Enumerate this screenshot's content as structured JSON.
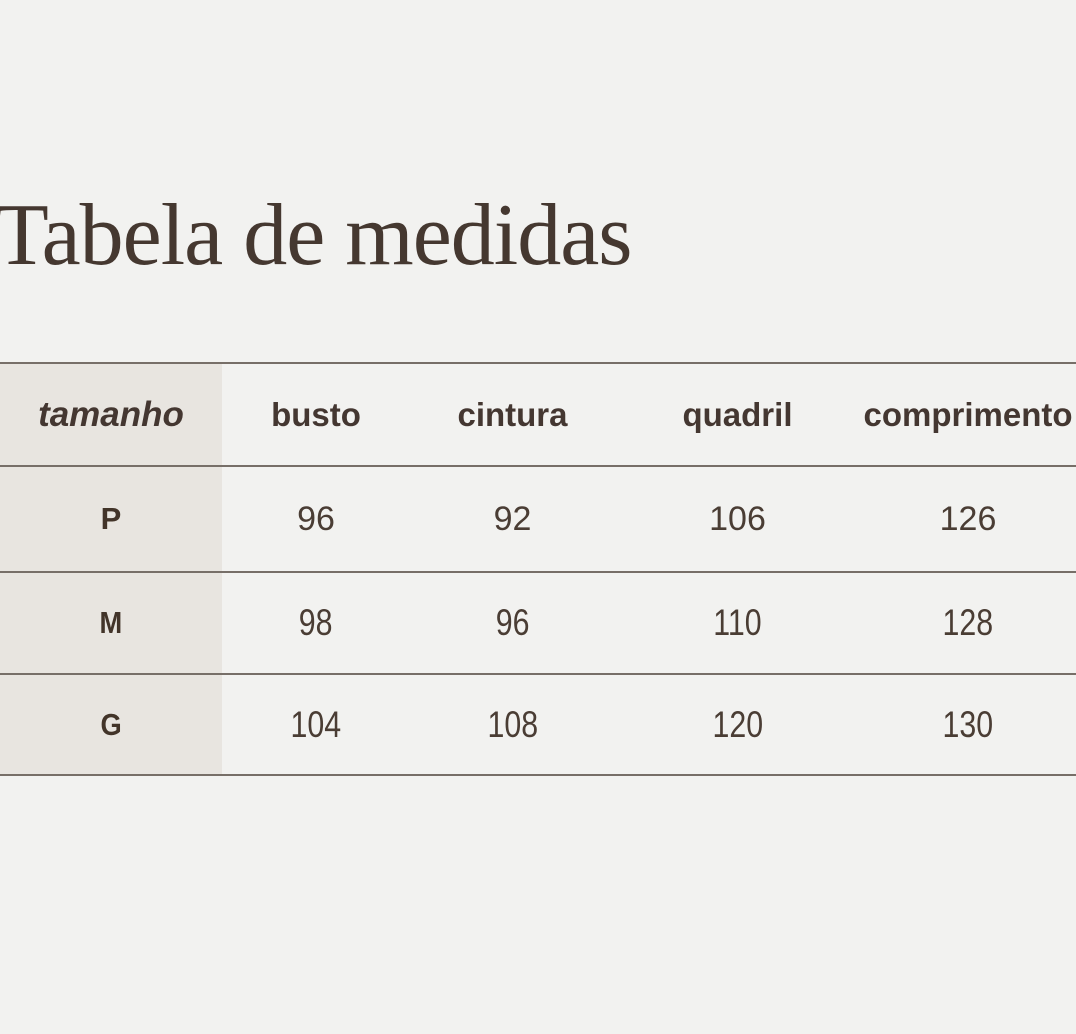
{
  "page": {
    "title": "Tabela de medidas"
  },
  "colors": {
    "background": "#f2f2f0",
    "size_column_background": "#e8e5e0",
    "rule_line": "#776f68",
    "title_text": "#453830",
    "header_text": "#443731",
    "value_text": "#4a3d34"
  },
  "chart_data": {
    "type": "table",
    "title": "Tabela de medidas",
    "columns": [
      "tamanho",
      "busto",
      "cintura",
      "quadril",
      "comprimento"
    ],
    "rows": [
      {
        "tamanho": "P",
        "busto": 96,
        "cintura": 92,
        "quadril": 106,
        "comprimento": 126
      },
      {
        "tamanho": "M",
        "busto": 98,
        "cintura": 96,
        "quadril": 110,
        "comprimento": 128
      },
      {
        "tamanho": "G",
        "busto": 104,
        "cintura": 108,
        "quadril": 120,
        "comprimento": 130
      }
    ],
    "layout": {
      "header_first_column_italic": true,
      "first_column_shaded": true,
      "horizontal_rules_only": true
    }
  }
}
